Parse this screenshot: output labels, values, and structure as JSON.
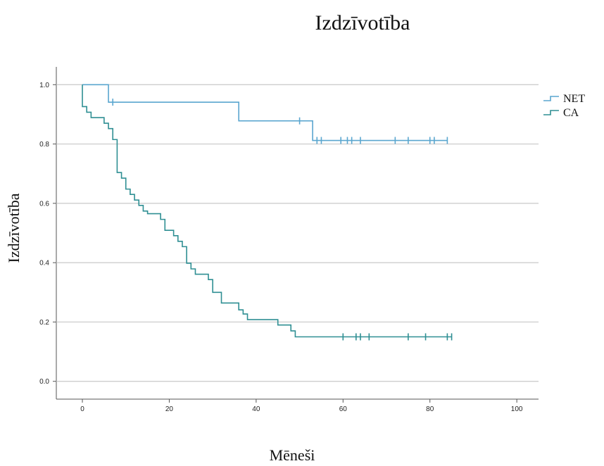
{
  "chart_data": {
    "type": "line",
    "subtype": "kaplan-meier-step",
    "title": "Izdzīvotība",
    "xlabel": "Mēneši",
    "ylabel": "Izdzīvotība",
    "xlim": [
      -6,
      105
    ],
    "ylim": [
      -0.06,
      1.06
    ],
    "xticks": [
      0,
      20,
      40,
      60,
      80,
      100
    ],
    "yticks": [
      0.0,
      0.2,
      0.4,
      0.6,
      0.8,
      1.0
    ],
    "grid": "horizontal",
    "legend_position": "top-right",
    "series": [
      {
        "name": "NET",
        "color": "#5aa6cf",
        "steps": [
          [
            0,
            1.0
          ],
          [
            6,
            0.941
          ],
          [
            36,
            0.878
          ],
          [
            53,
            0.812
          ],
          [
            84,
            0.812
          ]
        ],
        "censored": [
          [
            7,
            0.941
          ],
          [
            50,
            0.878
          ],
          [
            54,
            0.812
          ],
          [
            55,
            0.812
          ],
          [
            59.5,
            0.812
          ],
          [
            61,
            0.812
          ],
          [
            62,
            0.812
          ],
          [
            64,
            0.812
          ],
          [
            72,
            0.812
          ],
          [
            75,
            0.812
          ],
          [
            80,
            0.812
          ],
          [
            81,
            0.812
          ],
          [
            84,
            0.812
          ]
        ]
      },
      {
        "name": "CA",
        "color": "#2f8f93",
        "steps": [
          [
            0,
            1.0
          ],
          [
            0,
            0.926
          ],
          [
            1,
            0.907
          ],
          [
            2,
            0.889
          ],
          [
            5,
            0.87
          ],
          [
            6,
            0.852
          ],
          [
            7,
            0.815
          ],
          [
            8,
            0.796
          ],
          [
            8,
            0.704
          ],
          [
            9,
            0.685
          ],
          [
            10,
            0.648
          ],
          [
            11,
            0.63
          ],
          [
            12,
            0.611
          ],
          [
            13,
            0.593
          ],
          [
            14,
            0.574
          ],
          [
            15,
            0.565
          ],
          [
            18,
            0.546
          ],
          [
            19,
            0.509
          ],
          [
            21,
            0.491
          ],
          [
            22,
            0.472
          ],
          [
            23,
            0.454
          ],
          [
            24,
            0.398
          ],
          [
            25,
            0.379
          ],
          [
            26,
            0.361
          ],
          [
            29,
            0.343
          ],
          [
            30,
            0.3
          ],
          [
            32,
            0.264
          ],
          [
            36,
            0.241
          ],
          [
            37,
            0.227
          ],
          [
            38,
            0.208
          ],
          [
            45,
            0.19
          ],
          [
            48,
            0.17
          ],
          [
            49,
            0.15
          ],
          [
            85,
            0.15
          ]
        ],
        "censored": [
          [
            60,
            0.15
          ],
          [
            63,
            0.15
          ],
          [
            64,
            0.15
          ],
          [
            66,
            0.15
          ],
          [
            75,
            0.15
          ],
          [
            79,
            0.15
          ],
          [
            84,
            0.15
          ],
          [
            85,
            0.15
          ]
        ]
      }
    ]
  }
}
